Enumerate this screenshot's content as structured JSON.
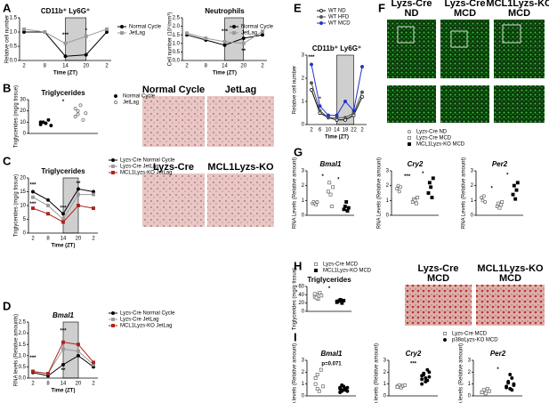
{
  "figure": {
    "panels": [
      "A",
      "B",
      "C",
      "D",
      "E",
      "F",
      "G",
      "H",
      "I"
    ],
    "images": [
      {
        "lines": [
          "Normal Cycle"
        ]
      },
      {
        "lines": [
          "JetLag"
        ]
      },
      {
        "lines": [
          "Lyzs-Cre"
        ]
      },
      {
        "lines": [
          "MCL1Lyzs-KO"
        ]
      },
      {
        "lines": [
          "Lyzs-Cre",
          "ND"
        ]
      },
      {
        "lines": [
          "Lyzs-Cre",
          "MCD"
        ]
      },
      {
        "lines": [
          "MCL1Lyzs-KO",
          "MCD"
        ]
      },
      {
        "lines": [
          "Lyzs-Cre",
          "MCD"
        ]
      },
      {
        "lines": [
          "MCL1Lyzs-KO",
          "MCD"
        ]
      }
    ]
  },
  "chart_data": [
    {
      "type": "line",
      "title": "CD11b⁺ Ly6G⁺",
      "ylabel": "Relative cell number",
      "xlabel": "Time (ZT)",
      "categories": [
        "2",
        "8",
        "14",
        "20",
        "2"
      ],
      "shade": [
        14,
        20
      ],
      "ylim": [
        0,
        1.5
      ],
      "yticks": [
        {
          "value": 0,
          "label": "0.0"
        },
        0.5,
        {
          "value": 1,
          "label": "1.0"
        },
        1.5
      ],
      "series": [
        {
          "name": "Normal Cycle",
          "color": "#000000",
          "marker": "circle",
          "values": [
            1.0,
            1.0,
            0.15,
            0.2,
            1.0
          ]
        },
        {
          "name": "JetLag",
          "color": "#999999",
          "marker": "square",
          "values": [
            1.1,
            1.0,
            0.6,
            0.85,
            1.1
          ]
        }
      ],
      "annotations": [
        {
          "text": "***",
          "x": 2,
          "y": 0.9
        },
        {
          "text": "*",
          "x": 3,
          "y": 1.05
        }
      ]
    },
    {
      "type": "line",
      "title": "Neutrophils",
      "ylabel": "Cell number (10⁶/mm³)",
      "xlabel": "Time (ZT)",
      "categories": [
        "2",
        "8",
        "14",
        "20",
        "2"
      ],
      "shade": [
        14,
        20
      ],
      "ylim": [
        0,
        2.5
      ],
      "yticks": [
        {
          "value": 0,
          "label": "0.0"
        },
        0.5,
        {
          "value": 1,
          "label": "1.0"
        },
        1.5,
        {
          "value": 2,
          "label": "2.0"
        },
        2.5
      ],
      "series": [
        {
          "name": "Normal Cycle",
          "color": "#000000",
          "marker": "circle",
          "values": [
            1.5,
            1.2,
            0.9,
            1.3,
            1.5
          ]
        },
        {
          "name": "JetLag",
          "color": "#999999",
          "marker": "square",
          "values": [
            1.6,
            1.3,
            1.1,
            1.0,
            1.7
          ]
        }
      ],
      "annotations": [
        {
          "text": "***",
          "x": 2,
          "y": 1.7
        },
        {
          "text": "**",
          "x": 3,
          "y": 0.55
        }
      ]
    },
    {
      "type": "dot",
      "title": "Triglycerides",
      "ylabel": "Triglycerides (mg/g tissue)",
      "ylim": [
        0,
        30
      ],
      "yticks": [
        0,
        10,
        20,
        30
      ],
      "series": [
        {
          "name": "Normal Cycle",
          "color": "#000000",
          "marker": "circle",
          "values": [
            8,
            10,
            9,
            12,
            7,
            10
          ]
        },
        {
          "name": "JetLag",
          "color": "#666666",
          "marker": "circle-open",
          "values": [
            15,
            20,
            25,
            12,
            18,
            22,
            17
          ]
        }
      ],
      "annotations": [
        {
          "text": "*",
          "x": 0.5,
          "y": 28
        }
      ]
    },
    {
      "type": "line",
      "title": "Triglycerides",
      "ylabel": "Triglycerides (mg/g tissue)",
      "xlabel": "Time (ZT)",
      "categories": [
        "2",
        "8",
        "14",
        "20",
        "2"
      ],
      "shade": [
        14,
        20
      ],
      "ylim": [
        0,
        20
      ],
      "yticks": [
        0,
        5,
        10,
        15,
        20
      ],
      "series": [
        {
          "name": "Lyzs-Cre Normal Cycle",
          "color": "#000000",
          "marker": "circle",
          "values": [
            15,
            12,
            7,
            16,
            15
          ]
        },
        {
          "name": "Lyzs-Cre JetLag",
          "color": "#999999",
          "marker": "square",
          "values": [
            13,
            10,
            5,
            14,
            14
          ]
        },
        {
          "name": "MCL1Lyzs-KO JetLag",
          "color": "#b0201a",
          "marker": "square",
          "values": [
            9,
            7,
            4,
            10,
            9
          ]
        }
      ],
      "annotations": [
        {
          "text": "***",
          "x": 0,
          "y": 17.5
        },
        {
          "text": "***",
          "x": 0,
          "y": 10.5
        },
        {
          "text": "***",
          "x": 2,
          "y": 9
        },
        {
          "text": "**",
          "x": 3,
          "y": 18
        }
      ]
    },
    {
      "type": "line",
      "title": "Bmal1",
      "ylabel": "RNA levels (Relative amounts)",
      "xlabel": "Time (ZT)",
      "categories": [
        "2",
        "8",
        "14",
        "20",
        "2"
      ],
      "shade": [
        14,
        20
      ],
      "ylim": [
        0,
        2.5
      ],
      "yticks": [
        {
          "value": 0,
          "label": "0.0"
        },
        0.5,
        {
          "value": 1,
          "label": "1.0"
        },
        1.5,
        {
          "value": 2,
          "label": "2.0"
        },
        2.5
      ],
      "series": [
        {
          "name": "Lyzs-Cre Normal Cycle",
          "color": "#000000",
          "marker": "circle",
          "values": [
            0.25,
            0.1,
            0.6,
            1.0,
            0.5
          ]
        },
        {
          "name": "Lyzs-Cre JetLag",
          "color": "#999999",
          "marker": "square",
          "values": [
            0.3,
            0.2,
            1.3,
            1.2,
            0.6
          ]
        },
        {
          "name": "MCL1Lyzs-KO JetLag",
          "color": "#b0201a",
          "marker": "square",
          "values": [
            0.3,
            0.2,
            1.6,
            1.5,
            0.7
          ]
        }
      ],
      "annotations": [
        {
          "text": "***",
          "x": 0,
          "y": 0.9
        },
        {
          "text": "***",
          "x": 2,
          "y": 2.1
        },
        {
          "text": "**",
          "x": 2,
          "y": 0.35
        }
      ]
    },
    {
      "type": "line",
      "title": "CD11b⁺ Ly6G⁺",
      "ylabel": "Relative cell number",
      "xlabel": "Time (ZT)",
      "categories": [
        "2",
        "6",
        "10",
        "14",
        "18",
        "22",
        "2"
      ],
      "shade": [
        14,
        22
      ],
      "ylim": [
        0,
        3
      ],
      "yticks": [
        0,
        1,
        2,
        3
      ],
      "series": [
        {
          "name": "WT ND",
          "color": "#000000",
          "marker": "circle-open",
          "values": [
            1.5,
            0.5,
            0.3,
            0.2,
            0.2,
            0.4,
            1.2
          ]
        },
        {
          "name": "WT HFD",
          "color": "#555555",
          "marker": "circle",
          "values": [
            1.8,
            0.6,
            0.3,
            0.3,
            0.3,
            0.5,
            1.4
          ]
        },
        {
          "name": "WT MCD",
          "color": "#2233cc",
          "marker": "circle",
          "values": [
            2.6,
            0.8,
            0.4,
            0.4,
            1.0,
            0.6,
            2.5
          ]
        }
      ],
      "annotations": [
        {
          "text": "***",
          "x": 0,
          "y": 2.9
        },
        {
          "text": "*",
          "x": 1,
          "y": 1.1
        }
      ]
    },
    {
      "type": "dot",
      "title": "Bmal1",
      "ylabel": "RNA Levels (Relative amount)",
      "ylim": [
        0,
        3
      ],
      "yticks": [
        0,
        1,
        2,
        3
      ],
      "legend": true,
      "series": [
        {
          "name": "Lyzs-Cre ND",
          "color": "#666666",
          "marker": "circle-open",
          "values": [
            0.8,
            0.9,
            0.8,
            0.7,
            0.9
          ]
        },
        {
          "name": "Lyzs-Cre MCD",
          "color": "#666666",
          "marker": "square-open",
          "values": [
            1.6,
            2.2,
            1.4,
            0.6,
            1.9
          ]
        },
        {
          "name": "MCL1Lyzs-KO MCD",
          "color": "#000000",
          "marker": "square",
          "values": [
            0.4,
            0.6,
            0.9,
            0.3,
            0.5
          ]
        }
      ],
      "annotations": [
        {
          "text": "*",
          "x": 0.5,
          "y": 2.6
        },
        {
          "text": "*",
          "x": 1.5,
          "y": 2.4
        }
      ]
    },
    {
      "type": "dot",
      "title": "Cry2",
      "ylabel": "RNA Levels (Relative amount)",
      "ylim": [
        0,
        3
      ],
      "yticks": [
        0,
        1,
        2,
        3
      ],
      "series": [
        {
          "name": "Lyzs-Cre ND",
          "color": "#666666",
          "marker": "circle-open",
          "values": [
            1.8,
            2.0,
            1.6,
            1.9
          ]
        },
        {
          "name": "Lyzs-Cre MCD",
          "color": "#666666",
          "marker": "square-open",
          "values": [
            0.9,
            1.1,
            1.0,
            0.8,
            1.2
          ]
        },
        {
          "name": "MCL1Lyzs-KO MCD",
          "color": "#000000",
          "marker": "square",
          "values": [
            1.5,
            2.2,
            1.9,
            1.2,
            2.5
          ]
        }
      ],
      "annotations": [
        {
          "text": "***",
          "x": 0.5,
          "y": 2.6
        },
        {
          "text": "*",
          "x": 1.5,
          "y": 2.8
        }
      ]
    },
    {
      "type": "dot",
      "title": "Per2",
      "ylabel": "RNA Levels (Relative amount)",
      "ylim": [
        0,
        3
      ],
      "yticks": [
        0,
        1,
        2,
        3
      ],
      "series": [
        {
          "name": "Lyzs-Cre ND",
          "color": "#666666",
          "marker": "circle-open",
          "values": [
            1.2,
            1.0,
            1.3,
            0.9
          ]
        },
        {
          "name": "Lyzs-Cre MCD",
          "color": "#666666",
          "marker": "square-open",
          "values": [
            0.6,
            0.8,
            0.5,
            0.7,
            0.9
          ]
        },
        {
          "name": "MCL1Lyzs-KO MCD",
          "color": "#000000",
          "marker": "square",
          "values": [
            1.4,
            2.0,
            1.1,
            1.7,
            2.2
          ]
        }
      ],
      "annotations": [
        {
          "text": "*",
          "x": 0.5,
          "y": 1.8
        },
        {
          "text": "*",
          "x": 1.5,
          "y": 2.7
        }
      ]
    },
    {
      "type": "dot",
      "title": "Triglycerides",
      "ylabel": "Triglycerides (mg/g tissue)",
      "ylim": [
        0,
        60
      ],
      "yticks": [
        0,
        20,
        40,
        60
      ],
      "legend": true,
      "series": [
        {
          "name": "Lyzs-Cre MCD",
          "color": "#666666",
          "marker": "square-open",
          "values": [
            35,
            40,
            30,
            45,
            38,
            42,
            33
          ]
        },
        {
          "name": "MCL1Lyzs-KO MCD",
          "color": "#000000",
          "marker": "square",
          "values": [
            22,
            25,
            28,
            20,
            26,
            24
          ]
        }
      ],
      "annotations": [
        {
          "text": "*",
          "x": 0.5,
          "y": 55
        }
      ]
    },
    {
      "type": "dot",
      "title": "Bmal1",
      "ylabel": "RNA levels (Relative amount)",
      "ylim": [
        0,
        3
      ],
      "yticks": [
        0,
        1,
        2,
        3
      ],
      "legend": true,
      "series": [
        {
          "name": "Lyzs-Cre MCD",
          "color": "#666666",
          "marker": "square-open",
          "values": [
            1.0,
            1.8,
            0.4,
            2.2,
            0.8,
            1.5,
            0.6
          ]
        },
        {
          "name": "p38αLyzs-KO MCD",
          "color": "#000000",
          "marker": "circle",
          "values": [
            0.6,
            0.4,
            0.8,
            0.5,
            0.7,
            0.3,
            0.9,
            0.5,
            0.6,
            0.4,
            0.7,
            0.5
          ]
        }
      ],
      "annotations": [
        {
          "text": "p=0.071",
          "x": 0.5,
          "y": 2.7
        }
      ]
    },
    {
      "type": "dot",
      "title": "Cry2",
      "ylabel": "RNA levels (Relative amount)",
      "ylim": [
        0,
        3
      ],
      "yticks": [
        0,
        1,
        2,
        3
      ],
      "series": [
        {
          "name": "Lyzs-Cre MCD",
          "color": "#666666",
          "marker": "square-open",
          "values": [
            0.8,
            0.9,
            0.7,
            0.85,
            0.9,
            0.75
          ]
        },
        {
          "name": "p38αLyzs-KO MCD",
          "color": "#000000",
          "marker": "circle",
          "values": [
            1.4,
            1.8,
            1.2,
            2.2,
            1.6,
            1.0,
            1.9,
            1.5,
            1.3,
            2.0,
            1.7
          ]
        }
      ],
      "annotations": [
        {
          "text": "***",
          "x": 0.5,
          "y": 2.7
        }
      ]
    },
    {
      "type": "dot",
      "title": "Per2",
      "ylabel": "RNA levels (Relative amount)",
      "ylim": [
        0,
        3
      ],
      "yticks": [
        0,
        1,
        2,
        3
      ],
      "series": [
        {
          "name": "Lyzs-Cre MCD",
          "color": "#666666",
          "marker": "square-open",
          "values": [
            0.3,
            0.5,
            0.2,
            0.6,
            0.4,
            0.3
          ]
        },
        {
          "name": "p38αLyzs-KO MCD",
          "color": "#000000",
          "marker": "circle",
          "values": [
            0.8,
            1.2,
            0.6,
            1.5,
            0.9,
            0.7,
            1.1,
            1.8,
            0.5,
            1.0
          ]
        }
      ],
      "annotations": [
        {
          "text": "*",
          "x": 0.5,
          "y": 2.2
        }
      ]
    }
  ]
}
